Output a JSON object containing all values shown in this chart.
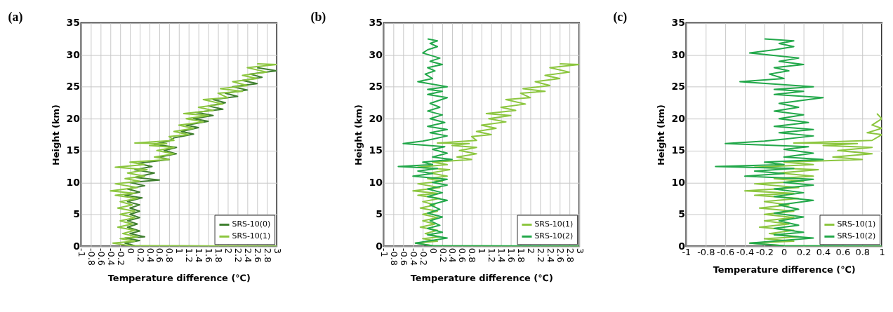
{
  "chart_data": [
    {
      "type": "line",
      "title": "(a)",
      "xlabel": "Temperature difference (℃)",
      "ylabel": "Height (km)",
      "xlim": [
        -1,
        3
      ],
      "xticks": [
        -1,
        -0.8,
        -0.6,
        -0.4,
        -0.2,
        0,
        0.2,
        0.4,
        0.6,
        0.8,
        1,
        1.2,
        1.4,
        1.6,
        1.8,
        2,
        2.2,
        2.4,
        2.6,
        2.8,
        3
      ],
      "ylim": [
        0,
        35
      ],
      "yticks": [
        0,
        5,
        10,
        15,
        20,
        25,
        30,
        35
      ],
      "grid": true,
      "legend": "bottom right",
      "series": [
        {
          "name": "SRS-10(0)",
          "color": "#3f7f2f",
          "x": [
            3,
            0.1,
            -0.1,
            0.2,
            -0.1,
            0.3,
            0.0,
            0.2,
            -0.05,
            0.15,
            -0.05,
            0.2,
            0.0,
            0.2,
            0.0,
            0.2,
            -0.05,
            0.25,
            -0.1,
            0.2,
            -0.05,
            0.3,
            0.0,
            0.6,
            0.1,
            0.5,
            0.1,
            0.45,
            0.15,
            0.8,
            0.6,
            0.95,
            0.7,
            0.95,
            0.5,
            0.8,
            0.9,
            1.3,
            1.05,
            1.4,
            1.15,
            1.6,
            1.3,
            1.7,
            1.35,
            1.9,
            1.6,
            1.95,
            1.7,
            2.2,
            1.95,
            2.4,
            2.1,
            2.6,
            2.3,
            2.7,
            2.45,
            3.0,
            2.6
          ],
          "values": [
            0,
            0.1,
            0.5,
            0.9,
            1.3,
            1.5,
            2,
            2.4,
            3,
            3.5,
            4,
            4.5,
            5,
            5.5,
            6,
            6.5,
            7,
            7.6,
            8,
            8.5,
            9,
            9.5,
            10,
            10.4,
            10.8,
            11.5,
            12,
            12.5,
            13,
            13.6,
            14,
            14.5,
            15,
            15.5,
            16,
            16.5,
            17,
            17.6,
            18,
            18.6,
            19,
            19.6,
            20,
            20.5,
            21,
            21.5,
            22,
            22.5,
            23,
            23.5,
            24,
            24.5,
            25,
            25.5,
            26,
            26.5,
            27,
            27.5,
            28
          ]
        },
        {
          "name": "SRS-10(1)",
          "color": "#8cc63f",
          "x": [
            3,
            0,
            -0.35,
            0.1,
            -0.2,
            0.15,
            -0.15,
            0.1,
            -0.25,
            0.05,
            -0.2,
            0.1,
            -0.2,
            0.1,
            -0.25,
            0.05,
            -0.2,
            0.15,
            -0.3,
            0.1,
            -0.4,
            0.15,
            -0.3,
            0.2,
            -0.1,
            0.3,
            -0.05,
            0.35,
            -0.3,
            0.3,
            0.0,
            0.8,
            0.5,
            0.9,
            0.55,
            0.9,
            0.4,
            0.75,
            0.1,
            0.9,
            0.8,
            1.2,
            0.9,
            1.3,
            1.0,
            1.5,
            1.15,
            1.6,
            1.1,
            1.7,
            1.4,
            1.9,
            1.5,
            2.0,
            1.8,
            2.3,
            1.85,
            2.4,
            2.1,
            2.6,
            2.3,
            2.8,
            2.4,
            3.0,
            2.6
          ],
          "values": [
            0,
            0.1,
            0.5,
            0.8,
            1.2,
            1.5,
            2,
            2.5,
            3,
            3.5,
            4,
            4.5,
            5,
            5.5,
            6,
            6.5,
            7,
            7.5,
            8,
            8.3,
            8.7,
            9.2,
            9.8,
            10.2,
            10.6,
            11,
            11.5,
            12,
            12.4,
            12.8,
            13.2,
            13.6,
            14,
            14.5,
            15,
            15.5,
            15.8,
            16.1,
            16.2,
            16.6,
            17.2,
            17.5,
            18,
            18.5,
            19,
            19.5,
            20,
            20.5,
            20.8,
            21.3,
            21.8,
            22.3,
            23,
            23.3,
            24,
            24.3,
            24.7,
            25.2,
            25.8,
            26.3,
            26.8,
            27.3,
            28,
            28.5,
            28.6
          ]
        }
      ]
    },
    {
      "type": "line",
      "title": "(b)",
      "xlabel": "Temperature difference (℃)",
      "ylabel": "Height (km)",
      "xlim": [
        -1,
        3
      ],
      "xticks": [
        -1,
        -0.8,
        -0.6,
        -0.4,
        -0.2,
        0,
        0.2,
        0.4,
        0.6,
        0.8,
        1,
        1.2,
        1.4,
        1.6,
        1.8,
        2,
        2.2,
        2.4,
        2.6,
        2.8,
        3
      ],
      "ylim": [
        0,
        35
      ],
      "yticks": [
        0,
        5,
        10,
        15,
        20,
        25,
        30,
        35
      ],
      "grid": true,
      "legend": "bottom right",
      "series": [
        {
          "name": "SRS-10(1)",
          "color": "#8cc63f",
          "x": [
            3,
            0,
            -0.35,
            0.1,
            -0.2,
            0.15,
            -0.15,
            0.1,
            -0.25,
            0.05,
            -0.2,
            0.1,
            -0.2,
            0.1,
            -0.25,
            0.05,
            -0.2,
            0.15,
            -0.3,
            0.1,
            -0.4,
            0.15,
            -0.3,
            0.2,
            -0.1,
            0.3,
            -0.05,
            0.35,
            -0.3,
            0.3,
            0.0,
            0.8,
            0.5,
            0.9,
            0.55,
            0.9,
            0.4,
            0.75,
            0.1,
            0.9,
            0.8,
            1.2,
            0.9,
            1.3,
            1.0,
            1.5,
            1.15,
            1.6,
            1.1,
            1.7,
            1.4,
            1.9,
            1.5,
            2.0,
            1.8,
            2.3,
            1.85,
            2.4,
            2.1,
            2.6,
            2.3,
            2.8,
            2.4,
            3.0,
            2.6
          ],
          "values": [
            0,
            0.1,
            0.5,
            0.8,
            1.2,
            1.5,
            2,
            2.5,
            3,
            3.5,
            4,
            4.5,
            5,
            5.5,
            6,
            6.5,
            7,
            7.5,
            8,
            8.3,
            8.7,
            9.2,
            9.8,
            10.2,
            10.6,
            11,
            11.5,
            12,
            12.4,
            12.8,
            13.2,
            13.6,
            14,
            14.5,
            15,
            15.5,
            15.8,
            16.1,
            16.2,
            16.6,
            17.2,
            17.5,
            18,
            18.5,
            19,
            19.5,
            20,
            20.5,
            20.8,
            21.3,
            21.8,
            22.3,
            23,
            23.3,
            24,
            24.3,
            24.7,
            25.2,
            25.8,
            26.3,
            26.8,
            27.3,
            28,
            28.5,
            28.6
          ]
        },
        {
          "name": "SRS-10(2)",
          "color": "#22a84a",
          "x": [
            3,
            0,
            -0.35,
            0.3,
            -0.1,
            0.2,
            -0.1,
            0.15,
            -0.05,
            0.2,
            -0.1,
            0.15,
            -0.05,
            0.3,
            -0.1,
            0.2,
            -0.1,
            0.3,
            0.0,
            0.3,
            -0.4,
            0.0,
            -0.3,
            0.1,
            -0.7,
            0.0,
            -0.2,
            0.4,
            0.0,
            0.3,
            0.0,
            0.25,
            -0.6,
            -0.2,
            0.0,
            0.3,
            -0.05,
            0.3,
            -0.1,
            0.25,
            -0.05,
            0.2,
            -0.1,
            0.15,
            -0.05,
            0.3,
            -0.1,
            0.2,
            -0.1,
            0.3,
            -0.3,
            0.0,
            -0.15,
            0.05,
            -0.1,
            0.2,
            -0.05,
            0.15,
            -0.2,
            -0.1,
            0.1,
            -0.05,
            0.1,
            -0.1
          ],
          "values": [
            0,
            0.1,
            0.5,
            1.3,
            1.8,
            2.2,
            2.8,
            3.3,
            4,
            4.6,
            5.2,
            5.8,
            6.5,
            7.2,
            7.8,
            8.4,
            9,
            9.6,
            10,
            10.5,
            11,
            11.4,
            11.8,
            12.2,
            12.5,
            12.8,
            13.2,
            13.6,
            14,
            14.6,
            15.2,
            15.6,
            16.1,
            16.5,
            16.8,
            17.3,
            17.8,
            18.3,
            18.8,
            19.4,
            20,
            20.6,
            21.2,
            21.8,
            22.4,
            23.3,
            23.8,
            24.3,
            24.6,
            25,
            25.8,
            26.3,
            27,
            27.5,
            28,
            28.5,
            29,
            29.5,
            30.3,
            30.8,
            31.3,
            31.8,
            32.2,
            32.5
          ]
        }
      ]
    },
    {
      "type": "line",
      "title": "(c)",
      "xlabel": "Temperature difference (℃)",
      "ylabel": "Height (km)",
      "xlim": [
        -1,
        1
      ],
      "xticks": [
        -1,
        -0.8,
        -0.6,
        -0.4,
        -0.2,
        0,
        0.2,
        0.4,
        0.6,
        0.8,
        1
      ],
      "ylim": [
        0,
        35
      ],
      "yticks": [
        0,
        5,
        10,
        15,
        20,
        25,
        30,
        35
      ],
      "grid": true,
      "legend": "bottom right",
      "series": [
        {
          "name": "SRS-10(1)",
          "color": "#8cc63f",
          "x": [
            1,
            0,
            -0.35,
            0.1,
            -0.2,
            0.15,
            -0.15,
            0.1,
            -0.25,
            0.05,
            -0.2,
            0.1,
            -0.2,
            0.1,
            -0.25,
            0.05,
            -0.2,
            0.15,
            -0.3,
            0.1,
            -0.4,
            0.15,
            -0.3,
            0.2,
            -0.1,
            0.3,
            -0.05,
            0.35,
            -0.3,
            0.3,
            0.0,
            0.8,
            0.5,
            0.9,
            0.55,
            0.9,
            0.4,
            0.75,
            0.1,
            0.9,
            1.0,
            0.85,
            1.0,
            0.9,
            1.0,
            0.95
          ],
          "values": [
            0,
            0.1,
            0.5,
            0.8,
            1.2,
            1.5,
            2,
            2.5,
            3,
            3.5,
            4,
            4.5,
            5,
            5.5,
            6,
            6.5,
            7,
            7.5,
            8,
            8.3,
            8.7,
            9.2,
            9.8,
            10.2,
            10.6,
            11,
            11.5,
            12,
            12.4,
            12.8,
            13.2,
            13.6,
            14,
            14.5,
            15,
            15.5,
            15.8,
            16.1,
            16.2,
            16.6,
            17.5,
            17.8,
            18.5,
            19,
            20,
            20.8
          ]
        },
        {
          "name": "SRS-10(2)",
          "color": "#22a84a",
          "x": [
            1,
            0,
            -0.35,
            0.3,
            -0.1,
            0.2,
            -0.1,
            0.15,
            -0.05,
            0.2,
            -0.1,
            0.15,
            -0.05,
            0.3,
            -0.1,
            0.2,
            -0.1,
            0.3,
            0.0,
            0.3,
            -0.4,
            0.0,
            -0.3,
            0.1,
            -0.7,
            0.0,
            -0.2,
            0.4,
            0.0,
            0.3,
            0.0,
            0.25,
            -0.6,
            -0.2,
            0.0,
            0.3,
            -0.05,
            0.3,
            -0.1,
            0.25,
            -0.05,
            0.2,
            -0.1,
            0.15,
            -0.05,
            0.4,
            -0.1,
            0.2,
            -0.1,
            0.3,
            -0.45,
            0.0,
            -0.15,
            0.05,
            -0.1,
            0.2,
            -0.05,
            0.15,
            -0.35,
            -0.1,
            0.1,
            -0.05,
            0.1,
            -0.2
          ],
          "values": [
            0,
            0.1,
            0.5,
            1.3,
            1.8,
            2.2,
            2.8,
            3.3,
            4,
            4.6,
            5.2,
            5.8,
            6.5,
            7.2,
            7.8,
            8.4,
            9,
            9.6,
            10,
            10.5,
            11,
            11.4,
            11.8,
            12.2,
            12.5,
            12.8,
            13.2,
            13.6,
            14,
            14.6,
            15.2,
            15.6,
            16.1,
            16.5,
            16.8,
            17.3,
            17.8,
            18.3,
            18.8,
            19.4,
            20,
            20.6,
            21.2,
            21.8,
            22.4,
            23.3,
            23.8,
            24.3,
            24.6,
            25,
            25.8,
            26.3,
            27,
            27.5,
            28,
            28.5,
            29,
            29.5,
            30.3,
            30.8,
            31.3,
            31.8,
            32.2,
            32.5
          ]
        }
      ]
    }
  ]
}
